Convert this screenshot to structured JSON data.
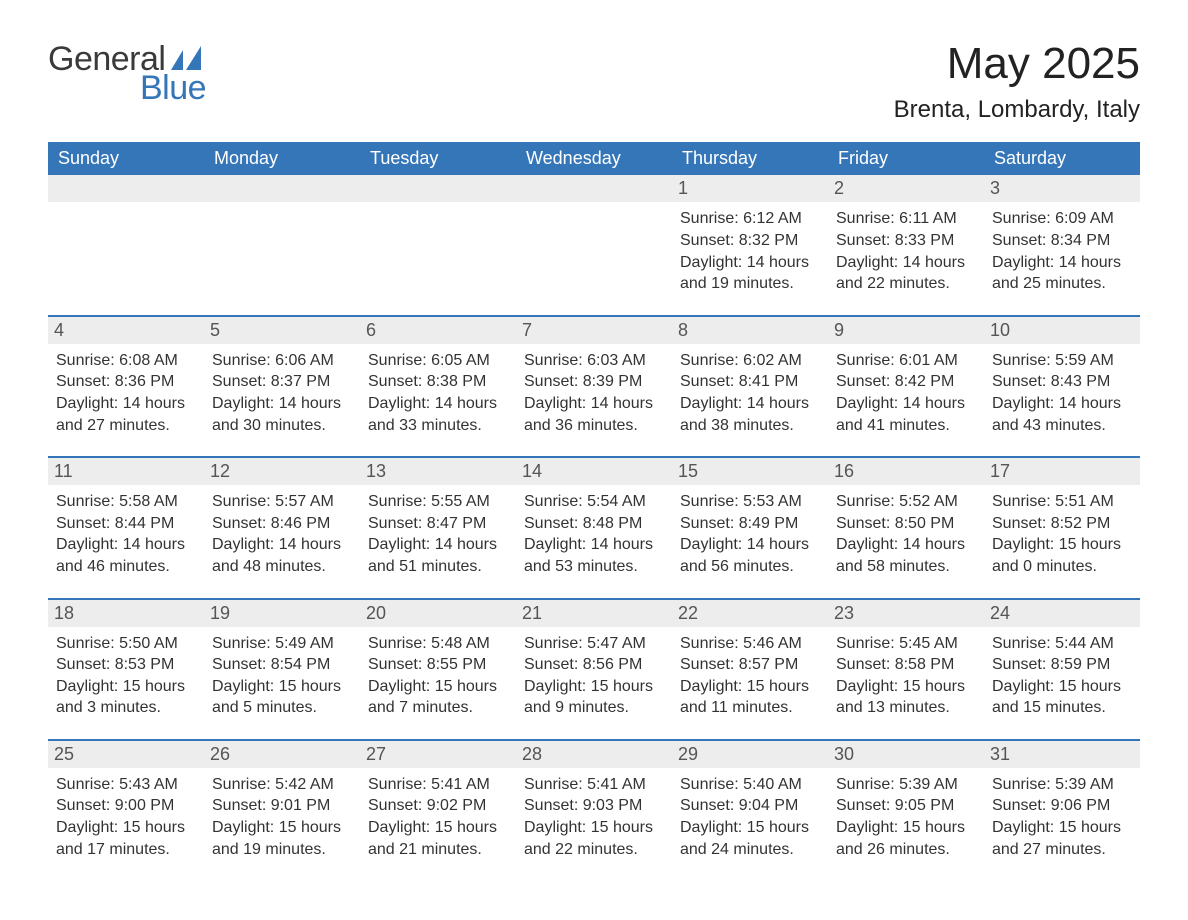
{
  "logo": {
    "text_general": "General",
    "text_blue": "Blue",
    "icon_color": "#3576b9"
  },
  "title": "May 2025",
  "location": "Brenta, Lombardy, Italy",
  "colors": {
    "header_bg": "#3576b9",
    "header_text": "#ffffff",
    "daynum_bg": "#ededed",
    "daynum_text": "#555555",
    "body_text": "#333333",
    "week_border": "#3576b9",
    "page_bg": "#ffffff"
  },
  "day_headers": [
    "Sunday",
    "Monday",
    "Tuesday",
    "Wednesday",
    "Thursday",
    "Friday",
    "Saturday"
  ],
  "labels": {
    "sunrise": "Sunrise",
    "sunset": "Sunset",
    "daylight": "Daylight"
  },
  "weeks": [
    [
      {
        "day": "",
        "sunrise": "",
        "sunset": "",
        "daylight": ""
      },
      {
        "day": "",
        "sunrise": "",
        "sunset": "",
        "daylight": ""
      },
      {
        "day": "",
        "sunrise": "",
        "sunset": "",
        "daylight": ""
      },
      {
        "day": "",
        "sunrise": "",
        "sunset": "",
        "daylight": ""
      },
      {
        "day": "1",
        "sunrise": "6:12 AM",
        "sunset": "8:32 PM",
        "daylight": "14 hours and 19 minutes."
      },
      {
        "day": "2",
        "sunrise": "6:11 AM",
        "sunset": "8:33 PM",
        "daylight": "14 hours and 22 minutes."
      },
      {
        "day": "3",
        "sunrise": "6:09 AM",
        "sunset": "8:34 PM",
        "daylight": "14 hours and 25 minutes."
      }
    ],
    [
      {
        "day": "4",
        "sunrise": "6:08 AM",
        "sunset": "8:36 PM",
        "daylight": "14 hours and 27 minutes."
      },
      {
        "day": "5",
        "sunrise": "6:06 AM",
        "sunset": "8:37 PM",
        "daylight": "14 hours and 30 minutes."
      },
      {
        "day": "6",
        "sunrise": "6:05 AM",
        "sunset": "8:38 PM",
        "daylight": "14 hours and 33 minutes."
      },
      {
        "day": "7",
        "sunrise": "6:03 AM",
        "sunset": "8:39 PM",
        "daylight": "14 hours and 36 minutes."
      },
      {
        "day": "8",
        "sunrise": "6:02 AM",
        "sunset": "8:41 PM",
        "daylight": "14 hours and 38 minutes."
      },
      {
        "day": "9",
        "sunrise": "6:01 AM",
        "sunset": "8:42 PM",
        "daylight": "14 hours and 41 minutes."
      },
      {
        "day": "10",
        "sunrise": "5:59 AM",
        "sunset": "8:43 PM",
        "daylight": "14 hours and 43 minutes."
      }
    ],
    [
      {
        "day": "11",
        "sunrise": "5:58 AM",
        "sunset": "8:44 PM",
        "daylight": "14 hours and 46 minutes."
      },
      {
        "day": "12",
        "sunrise": "5:57 AM",
        "sunset": "8:46 PM",
        "daylight": "14 hours and 48 minutes."
      },
      {
        "day": "13",
        "sunrise": "5:55 AM",
        "sunset": "8:47 PM",
        "daylight": "14 hours and 51 minutes."
      },
      {
        "day": "14",
        "sunrise": "5:54 AM",
        "sunset": "8:48 PM",
        "daylight": "14 hours and 53 minutes."
      },
      {
        "day": "15",
        "sunrise": "5:53 AM",
        "sunset": "8:49 PM",
        "daylight": "14 hours and 56 minutes."
      },
      {
        "day": "16",
        "sunrise": "5:52 AM",
        "sunset": "8:50 PM",
        "daylight": "14 hours and 58 minutes."
      },
      {
        "day": "17",
        "sunrise": "5:51 AM",
        "sunset": "8:52 PM",
        "daylight": "15 hours and 0 minutes."
      }
    ],
    [
      {
        "day": "18",
        "sunrise": "5:50 AM",
        "sunset": "8:53 PM",
        "daylight": "15 hours and 3 minutes."
      },
      {
        "day": "19",
        "sunrise": "5:49 AM",
        "sunset": "8:54 PM",
        "daylight": "15 hours and 5 minutes."
      },
      {
        "day": "20",
        "sunrise": "5:48 AM",
        "sunset": "8:55 PM",
        "daylight": "15 hours and 7 minutes."
      },
      {
        "day": "21",
        "sunrise": "5:47 AM",
        "sunset": "8:56 PM",
        "daylight": "15 hours and 9 minutes."
      },
      {
        "day": "22",
        "sunrise": "5:46 AM",
        "sunset": "8:57 PM",
        "daylight": "15 hours and 11 minutes."
      },
      {
        "day": "23",
        "sunrise": "5:45 AM",
        "sunset": "8:58 PM",
        "daylight": "15 hours and 13 minutes."
      },
      {
        "day": "24",
        "sunrise": "5:44 AM",
        "sunset": "8:59 PM",
        "daylight": "15 hours and 15 minutes."
      }
    ],
    [
      {
        "day": "25",
        "sunrise": "5:43 AM",
        "sunset": "9:00 PM",
        "daylight": "15 hours and 17 minutes."
      },
      {
        "day": "26",
        "sunrise": "5:42 AM",
        "sunset": "9:01 PM",
        "daylight": "15 hours and 19 minutes."
      },
      {
        "day": "27",
        "sunrise": "5:41 AM",
        "sunset": "9:02 PM",
        "daylight": "15 hours and 21 minutes."
      },
      {
        "day": "28",
        "sunrise": "5:41 AM",
        "sunset": "9:03 PM",
        "daylight": "15 hours and 22 minutes."
      },
      {
        "day": "29",
        "sunrise": "5:40 AM",
        "sunset": "9:04 PM",
        "daylight": "15 hours and 24 minutes."
      },
      {
        "day": "30",
        "sunrise": "5:39 AM",
        "sunset": "9:05 PM",
        "daylight": "15 hours and 26 minutes."
      },
      {
        "day": "31",
        "sunrise": "5:39 AM",
        "sunset": "9:06 PM",
        "daylight": "15 hours and 27 minutes."
      }
    ]
  ]
}
